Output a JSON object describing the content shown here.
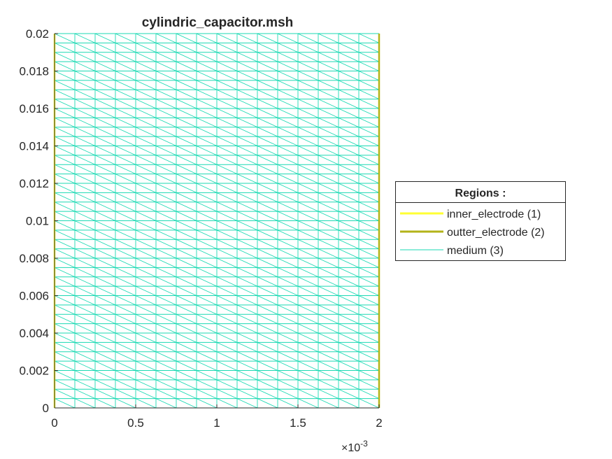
{
  "chart_data": {
    "type": "mesh",
    "title": "cylindric_capacitor.msh",
    "xlabel": "",
    "ylabel": "",
    "xlim": [
      0,
      0.002
    ],
    "ylim": [
      0,
      0.02
    ],
    "x_multiplier_label": "×10",
    "x_multiplier_exponent": "-3",
    "x_ticks": [
      0,
      0.0005,
      0.001,
      0.0015,
      0.002
    ],
    "x_tick_labels": [
      "0",
      "0.5",
      "1",
      "1.5",
      "2"
    ],
    "y_ticks": [
      0,
      0.002,
      0.004,
      0.006,
      0.008,
      0.01,
      0.012,
      0.014,
      0.016,
      0.018,
      0.02
    ],
    "y_tick_labels": [
      "0",
      "0.002",
      "0.004",
      "0.006",
      "0.008",
      "0.01",
      "0.012",
      "0.014",
      "0.016",
      "0.018",
      "0.02"
    ],
    "mesh": {
      "nx": 16,
      "ny": 40,
      "diagonal": "top-left-to-bottom-right"
    },
    "legend": {
      "title": "Regions :",
      "placement": "outside-right",
      "entries": [
        {
          "label": "inner_electrode (1)",
          "color": "#FFFF33",
          "boundary": "left",
          "line": "thick"
        },
        {
          "label": "outter_electrode (2)",
          "color": "#B3B319",
          "boundary": "right",
          "line": "thick"
        },
        {
          "label": "medium (3)",
          "color": "#1AD9B3",
          "boundary": "interior",
          "line": "thin"
        }
      ]
    }
  }
}
